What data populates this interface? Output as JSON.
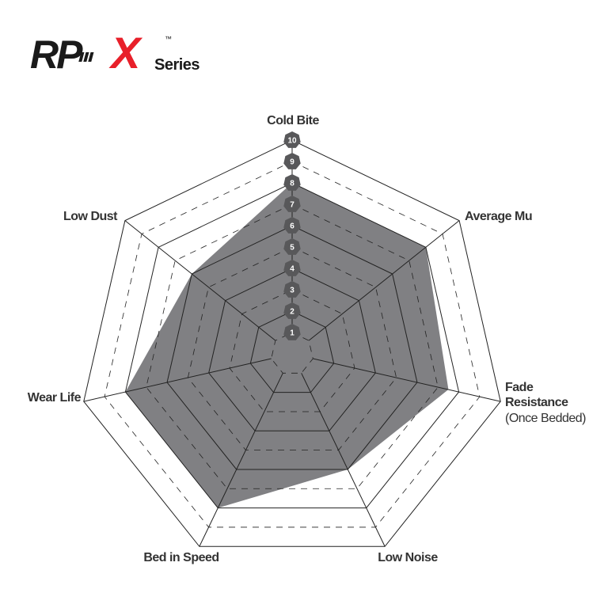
{
  "logo": {
    "text": "RP-X",
    "trademark": "™",
    "series": "Series",
    "colors": {
      "rp": "#1a1a1a",
      "x": "#e8202a"
    }
  },
  "chart_data": {
    "type": "radar",
    "axes": [
      {
        "label": "Cold Bite",
        "sub": ""
      },
      {
        "label": "Average Mu",
        "sub": ""
      },
      {
        "label": "Fade",
        "label2": "Resistance",
        "sub": "(Once Bedded)"
      },
      {
        "label": "Low Noise",
        "sub": ""
      },
      {
        "label": "Bed in Speed",
        "sub": ""
      },
      {
        "label": "Wear Life",
        "sub": ""
      },
      {
        "label": "Low Dust",
        "sub": ""
      }
    ],
    "values": [
      8,
      8,
      7.5,
      6,
      8,
      8,
      6
    ],
    "range": [
      0,
      10
    ],
    "ticks": [
      "1",
      "2",
      "3",
      "4",
      "5",
      "6",
      "7",
      "8",
      "9",
      "10"
    ],
    "fill_color": "#808083",
    "badge_color": "#58585a"
  }
}
